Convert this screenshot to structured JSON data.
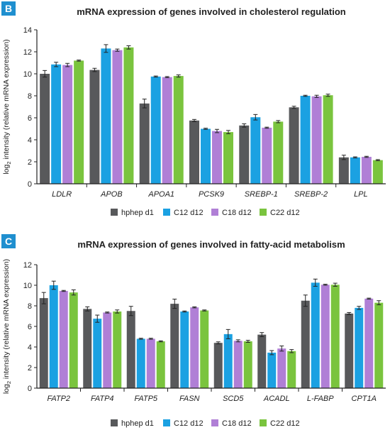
{
  "chart_data": [
    {
      "panel_label": "B",
      "type": "bar",
      "title": "mRNA expression of genes involved in cholesterol regulation",
      "ylabel_prefix": "log",
      "ylabel_sub": "2",
      "ylabel_rest": " intensity (relative mRNA expression)",
      "ylim": [
        0,
        14
      ],
      "yticks": [
        0,
        2,
        4,
        6,
        8,
        10,
        12,
        14
      ],
      "categories": [
        "LDLR",
        "APOB",
        "APOA1",
        "PCSK9",
        "SREBP-1",
        "SREBP-2",
        "LPL"
      ],
      "legend_position": "bottom",
      "series": [
        {
          "name": "hphep d1",
          "color": "#58595b",
          "values": [
            10.0,
            10.35,
            7.3,
            5.75,
            5.3,
            6.95,
            2.4
          ],
          "errors": [
            0.3,
            0.15,
            0.4,
            0.1,
            0.15,
            0.1,
            0.2
          ]
        },
        {
          "name": "C12 d12",
          "color": "#1ba1e2",
          "values": [
            10.85,
            12.3,
            9.75,
            5.0,
            6.05,
            8.0,
            2.4
          ],
          "errors": [
            0.2,
            0.35,
            0.05,
            0.05,
            0.25,
            0.05,
            0.05
          ]
        },
        {
          "name": "C18 d12",
          "color": "#b07fd6",
          "values": [
            10.8,
            12.15,
            9.7,
            4.8,
            5.1,
            7.95,
            2.45
          ],
          "errors": [
            0.15,
            0.1,
            0.05,
            0.15,
            0.05,
            0.1,
            0.05
          ]
        },
        {
          "name": "C22 d12",
          "color": "#7ac43e",
          "values": [
            11.2,
            12.4,
            9.8,
            4.7,
            5.65,
            8.05,
            2.15
          ],
          "errors": [
            0.05,
            0.15,
            0.1,
            0.15,
            0.1,
            0.1,
            0.05
          ]
        }
      ]
    },
    {
      "panel_label": "C",
      "type": "bar",
      "title": "mRNA expression of genes involved in fatty-acid metabolism",
      "ylabel_prefix": "log",
      "ylabel_sub": "2",
      "ylabel_rest": " intensity (relative mRNA expression)",
      "ylim": [
        0,
        12
      ],
      "yticks": [
        0,
        2,
        4,
        6,
        8,
        10,
        12
      ],
      "categories": [
        "FATP2",
        "FATP4",
        "FATP5",
        "FASN",
        "SCD5",
        "ACADL",
        "L-FABP",
        "CPT1A"
      ],
      "legend_position": "bottom",
      "series": [
        {
          "name": "hphep d1",
          "color": "#58595b",
          "values": [
            8.75,
            7.7,
            7.5,
            8.2,
            4.4,
            5.2,
            8.5,
            7.25
          ],
          "errors": [
            0.55,
            0.2,
            0.45,
            0.45,
            0.1,
            0.2,
            0.55,
            0.1
          ]
        },
        {
          "name": "C12 d12",
          "color": "#1ba1e2",
          "values": [
            10.0,
            6.75,
            4.8,
            7.45,
            5.25,
            3.45,
            10.25,
            7.8
          ],
          "errors": [
            0.4,
            0.35,
            0.05,
            0.05,
            0.45,
            0.2,
            0.35,
            0.15
          ]
        },
        {
          "name": "C18 d12",
          "color": "#b07fd6",
          "values": [
            9.45,
            7.35,
            4.8,
            7.85,
            4.6,
            3.85,
            10.05,
            8.7
          ],
          "errors": [
            0.05,
            0.05,
            0.05,
            0.05,
            0.1,
            0.25,
            0.05,
            0.05
          ]
        },
        {
          "name": "C22 d12",
          "color": "#7ac43e",
          "values": [
            9.3,
            7.45,
            4.55,
            7.55,
            4.55,
            3.6,
            10.05,
            8.3
          ],
          "errors": [
            0.25,
            0.15,
            0.05,
            0.05,
            0.1,
            0.15,
            0.15,
            0.2
          ]
        }
      ]
    }
  ]
}
